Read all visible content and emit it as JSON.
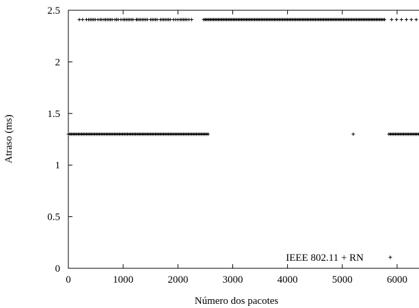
{
  "chart_data": {
    "type": "scatter",
    "xlabel": "Número dos pacotes",
    "ylabel": "Atraso (ms)",
    "xlim": [
      0,
      6400
    ],
    "ylim": [
      0,
      2.5
    ],
    "x_ticks": [
      0,
      1000,
      2000,
      3000,
      4000,
      5000,
      6000
    ],
    "y_ticks": [
      0,
      0.5,
      1,
      1.5,
      2,
      2.5
    ],
    "x_tick_labels": [
      "0",
      "1000",
      "2000",
      "3000",
      "4000",
      "5000",
      "6000"
    ],
    "y_tick_labels": [
      "0",
      "0.5",
      "1",
      "1.5",
      "2",
      "2.5"
    ],
    "grid": false,
    "legend_position": "bottom-right",
    "marker": "+",
    "series": [
      {
        "name": "IEEE 802.11 + RN",
        "color": "#000000",
        "points": [
          [
            0,
            1.3
          ],
          [
            30,
            1.3
          ],
          [
            60,
            1.3
          ],
          [
            90,
            1.3
          ],
          [
            120,
            1.3
          ],
          [
            150,
            1.3
          ],
          [
            180,
            1.3
          ],
          [
            210,
            1.3
          ],
          [
            240,
            1.3
          ],
          [
            270,
            1.3
          ],
          [
            300,
            1.3
          ],
          [
            330,
            1.3
          ],
          [
            360,
            1.3
          ],
          [
            390,
            1.3
          ],
          [
            420,
            1.3
          ],
          [
            450,
            1.3
          ],
          [
            480,
            1.3
          ],
          [
            510,
            1.3
          ],
          [
            540,
            1.3
          ],
          [
            570,
            1.3
          ],
          [
            600,
            1.3
          ],
          [
            630,
            1.3
          ],
          [
            660,
            1.3
          ],
          [
            690,
            1.3
          ],
          [
            720,
            1.3
          ],
          [
            750,
            1.3
          ],
          [
            780,
            1.3
          ],
          [
            810,
            1.3
          ],
          [
            840,
            1.3
          ],
          [
            870,
            1.3
          ],
          [
            900,
            1.3
          ],
          [
            930,
            1.3
          ],
          [
            960,
            1.3
          ],
          [
            990,
            1.3
          ],
          [
            1020,
            1.3
          ],
          [
            1050,
            1.3
          ],
          [
            1080,
            1.3
          ],
          [
            1110,
            1.3
          ],
          [
            1140,
            1.3
          ],
          [
            1170,
            1.3
          ],
          [
            1200,
            1.3
          ],
          [
            1230,
            1.3
          ],
          [
            1260,
            1.3
          ],
          [
            1290,
            1.3
          ],
          [
            1320,
            1.3
          ],
          [
            1350,
            1.3
          ],
          [
            1380,
            1.3
          ],
          [
            1410,
            1.3
          ],
          [
            1440,
            1.3
          ],
          [
            1470,
            1.3
          ],
          [
            1500,
            1.3
          ],
          [
            1530,
            1.3
          ],
          [
            1560,
            1.3
          ],
          [
            1590,
            1.3
          ],
          [
            1620,
            1.3
          ],
          [
            1650,
            1.3
          ],
          [
            1680,
            1.3
          ],
          [
            1710,
            1.3
          ],
          [
            1740,
            1.3
          ],
          [
            1770,
            1.3
          ],
          [
            1800,
            1.3
          ],
          [
            1830,
            1.3
          ],
          [
            1860,
            1.3
          ],
          [
            1890,
            1.3
          ],
          [
            1920,
            1.3
          ],
          [
            1950,
            1.3
          ],
          [
            1980,
            1.3
          ],
          [
            2010,
            1.3
          ],
          [
            2040,
            1.3
          ],
          [
            2070,
            1.3
          ],
          [
            2100,
            1.3
          ],
          [
            2130,
            1.3
          ],
          [
            2160,
            1.3
          ],
          [
            2190,
            1.3
          ],
          [
            2220,
            1.3
          ],
          [
            2250,
            1.3
          ],
          [
            2280,
            1.3
          ],
          [
            2310,
            1.3
          ],
          [
            2340,
            1.3
          ],
          [
            2370,
            1.3
          ],
          [
            2400,
            1.3
          ],
          [
            2430,
            1.3
          ],
          [
            2460,
            1.3
          ],
          [
            2490,
            1.3
          ],
          [
            2520,
            1.3
          ],
          [
            2550,
            1.3
          ],
          [
            5200,
            1.3
          ],
          [
            5850,
            1.3
          ],
          [
            5880,
            1.3
          ],
          [
            5910,
            1.3
          ],
          [
            5940,
            1.3
          ],
          [
            5970,
            1.3
          ],
          [
            6000,
            1.3
          ],
          [
            6030,
            1.3
          ],
          [
            6060,
            1.3
          ],
          [
            6090,
            1.3
          ],
          [
            6120,
            1.3
          ],
          [
            6150,
            1.3
          ],
          [
            6180,
            1.3
          ],
          [
            6210,
            1.3
          ],
          [
            6240,
            1.3
          ],
          [
            6270,
            1.3
          ],
          [
            6300,
            1.3
          ],
          [
            6330,
            1.3
          ],
          [
            6360,
            1.3
          ],
          [
            6390,
            1.3
          ],
          [
            200,
            2.41
          ],
          [
            260,
            2.41
          ],
          [
            330,
            2.41
          ],
          [
            370,
            2.41
          ],
          [
            400,
            2.41
          ],
          [
            430,
            2.41
          ],
          [
            460,
            2.41
          ],
          [
            490,
            2.41
          ],
          [
            540,
            2.41
          ],
          [
            580,
            2.41
          ],
          [
            610,
            2.41
          ],
          [
            650,
            2.41
          ],
          [
            680,
            2.41
          ],
          [
            710,
            2.41
          ],
          [
            740,
            2.41
          ],
          [
            770,
            2.41
          ],
          [
            800,
            2.41
          ],
          [
            850,
            2.41
          ],
          [
            880,
            2.41
          ],
          [
            910,
            2.41
          ],
          [
            960,
            2.41
          ],
          [
            1000,
            2.41
          ],
          [
            1030,
            2.41
          ],
          [
            1060,
            2.41
          ],
          [
            1090,
            2.41
          ],
          [
            1120,
            2.41
          ],
          [
            1150,
            2.41
          ],
          [
            1180,
            2.41
          ],
          [
            1240,
            2.41
          ],
          [
            1260,
            2.41
          ],
          [
            1290,
            2.41
          ],
          [
            1320,
            2.41
          ],
          [
            1350,
            2.41
          ],
          [
            1380,
            2.41
          ],
          [
            1410,
            2.41
          ],
          [
            1440,
            2.41
          ],
          [
            1500,
            2.41
          ],
          [
            1530,
            2.41
          ],
          [
            1560,
            2.41
          ],
          [
            1590,
            2.41
          ],
          [
            1620,
            2.41
          ],
          [
            1680,
            2.41
          ],
          [
            1710,
            2.41
          ],
          [
            1740,
            2.41
          ],
          [
            1770,
            2.41
          ],
          [
            1800,
            2.41
          ],
          [
            1830,
            2.41
          ],
          [
            1860,
            2.41
          ],
          [
            1920,
            2.41
          ],
          [
            1960,
            2.41
          ],
          [
            2000,
            2.41
          ],
          [
            2040,
            2.41
          ],
          [
            2070,
            2.41
          ],
          [
            2100,
            2.41
          ],
          [
            2130,
            2.41
          ],
          [
            2160,
            2.41
          ],
          [
            2200,
            2.41
          ],
          [
            2250,
            2.41
          ],
          [
            2470,
            2.41
          ],
          [
            2500,
            2.41
          ],
          [
            2530,
            2.41
          ],
          [
            2560,
            2.41
          ],
          [
            2590,
            2.41
          ],
          [
            2620,
            2.41
          ],
          [
            2650,
            2.41
          ],
          [
            2680,
            2.41
          ],
          [
            2710,
            2.41
          ],
          [
            2740,
            2.41
          ],
          [
            2770,
            2.41
          ],
          [
            2800,
            2.41
          ],
          [
            2830,
            2.41
          ],
          [
            2860,
            2.41
          ],
          [
            2890,
            2.41
          ],
          [
            2920,
            2.41
          ],
          [
            2950,
            2.41
          ],
          [
            2980,
            2.41
          ],
          [
            3010,
            2.41
          ],
          [
            3040,
            2.41
          ],
          [
            3070,
            2.41
          ],
          [
            3100,
            2.41
          ],
          [
            3130,
            2.41
          ],
          [
            3160,
            2.41
          ],
          [
            3190,
            2.41
          ],
          [
            3220,
            2.41
          ],
          [
            3250,
            2.41
          ],
          [
            3280,
            2.41
          ],
          [
            3310,
            2.41
          ],
          [
            3340,
            2.41
          ],
          [
            3370,
            2.41
          ],
          [
            3400,
            2.41
          ],
          [
            3430,
            2.41
          ],
          [
            3460,
            2.41
          ],
          [
            3490,
            2.41
          ],
          [
            3520,
            2.41
          ],
          [
            3550,
            2.41
          ],
          [
            3580,
            2.41
          ],
          [
            3610,
            2.41
          ],
          [
            3640,
            2.41
          ],
          [
            3670,
            2.41
          ],
          [
            3700,
            2.41
          ],
          [
            3730,
            2.41
          ],
          [
            3760,
            2.41
          ],
          [
            3790,
            2.41
          ],
          [
            3820,
            2.41
          ],
          [
            3850,
            2.41
          ],
          [
            3880,
            2.41
          ],
          [
            3910,
            2.41
          ],
          [
            3940,
            2.41
          ],
          [
            3970,
            2.41
          ],
          [
            4000,
            2.41
          ],
          [
            4030,
            2.41
          ],
          [
            4060,
            2.41
          ],
          [
            4090,
            2.41
          ],
          [
            4120,
            2.41
          ],
          [
            4150,
            2.41
          ],
          [
            4180,
            2.41
          ],
          [
            4210,
            2.41
          ],
          [
            4240,
            2.41
          ],
          [
            4270,
            2.41
          ],
          [
            4300,
            2.41
          ],
          [
            4330,
            2.41
          ],
          [
            4360,
            2.41
          ],
          [
            4390,
            2.41
          ],
          [
            4420,
            2.41
          ],
          [
            4450,
            2.41
          ],
          [
            4480,
            2.41
          ],
          [
            4510,
            2.41
          ],
          [
            4540,
            2.41
          ],
          [
            4570,
            2.41
          ],
          [
            4600,
            2.41
          ],
          [
            4630,
            2.41
          ],
          [
            4660,
            2.41
          ],
          [
            4690,
            2.41
          ],
          [
            4720,
            2.41
          ],
          [
            4750,
            2.41
          ],
          [
            4780,
            2.41
          ],
          [
            4810,
            2.41
          ],
          [
            4840,
            2.41
          ],
          [
            4870,
            2.41
          ],
          [
            4900,
            2.41
          ],
          [
            4930,
            2.41
          ],
          [
            4960,
            2.41
          ],
          [
            4990,
            2.41
          ],
          [
            5020,
            2.41
          ],
          [
            5050,
            2.41
          ],
          [
            5080,
            2.41
          ],
          [
            5110,
            2.41
          ],
          [
            5140,
            2.41
          ],
          [
            5170,
            2.41
          ],
          [
            5200,
            2.41
          ],
          [
            5230,
            2.41
          ],
          [
            5260,
            2.41
          ],
          [
            5290,
            2.41
          ],
          [
            5320,
            2.41
          ],
          [
            5350,
            2.41
          ],
          [
            5380,
            2.41
          ],
          [
            5410,
            2.41
          ],
          [
            5440,
            2.41
          ],
          [
            5470,
            2.41
          ],
          [
            5500,
            2.41
          ],
          [
            5530,
            2.41
          ],
          [
            5560,
            2.41
          ],
          [
            5590,
            2.41
          ],
          [
            5620,
            2.41
          ],
          [
            5650,
            2.41
          ],
          [
            5680,
            2.41
          ],
          [
            5710,
            2.41
          ],
          [
            5740,
            2.41
          ],
          [
            5770,
            2.41
          ],
          [
            5900,
            2.41
          ],
          [
            5990,
            2.41
          ],
          [
            6080,
            2.41
          ],
          [
            6170,
            2.41
          ],
          [
            6260,
            2.41
          ],
          [
            6350,
            2.41
          ]
        ]
      }
    ]
  }
}
